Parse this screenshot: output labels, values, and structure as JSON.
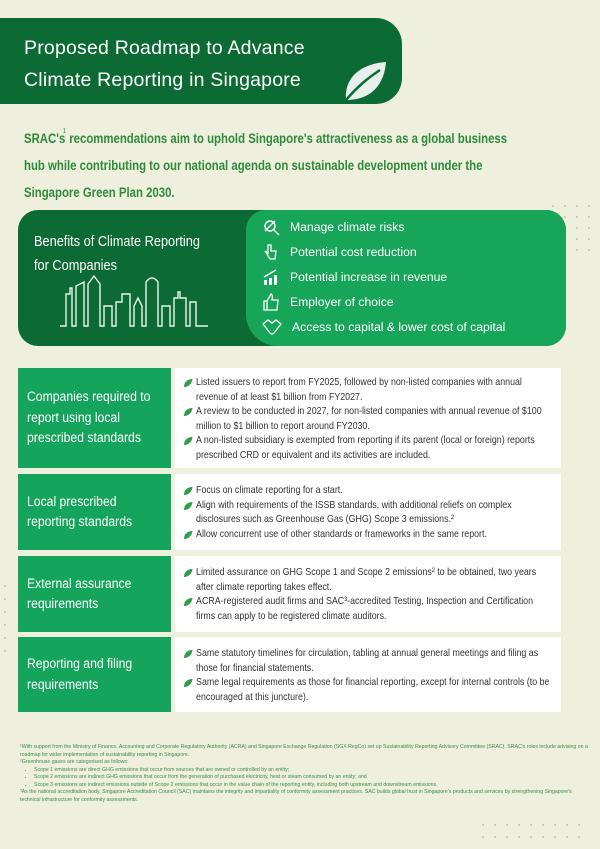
{
  "header": {
    "title_line1": "Proposed Roadmap to Advance",
    "title_line2": "Climate Reporting in Singapore"
  },
  "intro": {
    "line1_a": "SRAC's",
    "footnote": "1",
    "line1_b": " recommendations  aim to uphold Singapore's attractiveness as a global business",
    "line2": "hub while contributing to our national agenda on sustainable development under the",
    "line3": "Singapore Green Plan 2030."
  },
  "benefits": {
    "title_line1": "Benefits of Climate Reporting",
    "title_line2": "for Companies",
    "items": [
      {
        "label": "Manage climate risks",
        "icon": "magnifier-leaf-icon"
      },
      {
        "label": "Potential cost reduction",
        "icon": "hand-down-icon"
      },
      {
        "label": "Potential increase in revenue",
        "icon": "growth-chart-icon"
      },
      {
        "label": "Employer of choice",
        "icon": "thumbs-up-icon"
      },
      {
        "label": "Access to capital & lower cost of capital",
        "icon": "handshake-icon"
      }
    ]
  },
  "rows": [
    {
      "label": "Companies required to report using local prescribed standards",
      "bullets": [
        "Listed issuers to report from FY2025, followed by non-listed companies with annual revenue of at least $1 billion from FY2027.",
        "A review to be conducted in 2027, for non-listed companies with annual revenue of $100 million to $1 billion to report around FY2030.",
        "A non-listed subsidiary is exempted from reporting if its parent (local or foreign) reports prescribed CRD or equivalent and its activities are included."
      ]
    },
    {
      "label": "Local prescribed reporting standards",
      "bullets": [
        "Focus on climate reporting for a start.",
        "Align with requirements of the ISSB standards, with additional reliefs on complex disclosures such as Greenhouse Gas (GHG) Scope 3 emissions.²",
        "Allow concurrent use of other standards or frameworks in the same report."
      ]
    },
    {
      "label": "External assurance requirements",
      "bullets": [
        "Limited assurance on GHG Scope 1 and Scope 2 emissions² to be obtained, two years after climate reporting takes effect.",
        "ACRA-registered audit firms and SAC³-accredited Testing, Inspection and Certification firms can apply to be registered climate auditors."
      ]
    },
    {
      "label": "Reporting and filing requirements",
      "bullets": [
        "Same statutory timelines for circulation, tabling at annual general meetings and filing as those for financial statements.",
        "Same legal requirements as those for financial reporting, except for internal controls (to be encouraged at this juncture)."
      ]
    }
  ],
  "footnotes": {
    "f1": "¹With support from the Ministry of Finance, Accounting and Corporate Regulatory Authority (ACRA) and Singapore Exchange Regulation (SGX RegCo) set up Sustainability Reporting Advisory Committee (SRAC). SRAC's roles include advising on a roadmap for wider implementation of sustainability reporting in Singapore.",
    "f2": "²Greenhouse gases are categorised as follows:",
    "scopes": [
      "Scope 1 emissions are direct GHG emissions that occur from sources that are owned or controlled by an entity;",
      "Scope 2 emissions are indirect GHG emissions that occur from the generation of purchased electricity, heat or steam consumed by an entity; and",
      "Scope 3 emissions are indirect emissions outside of Scope 2 emissions that occur in the value chain of the reporting entity, including both upstream and downstream emissions."
    ],
    "f3": "³As the national accreditation body, Singapore Accreditation Council (SAC) maintains the integrity and impartiality of conformity assessment practices. SAC builds global trust in Singapore's products and services by strengthening Singapore's technical infrastructure for conformity assessments."
  },
  "colors": {
    "background": "#eef0dd",
    "dark_green": "#0c6b35",
    "green": "#15a45b",
    "text_green": "#2f8a3c"
  }
}
